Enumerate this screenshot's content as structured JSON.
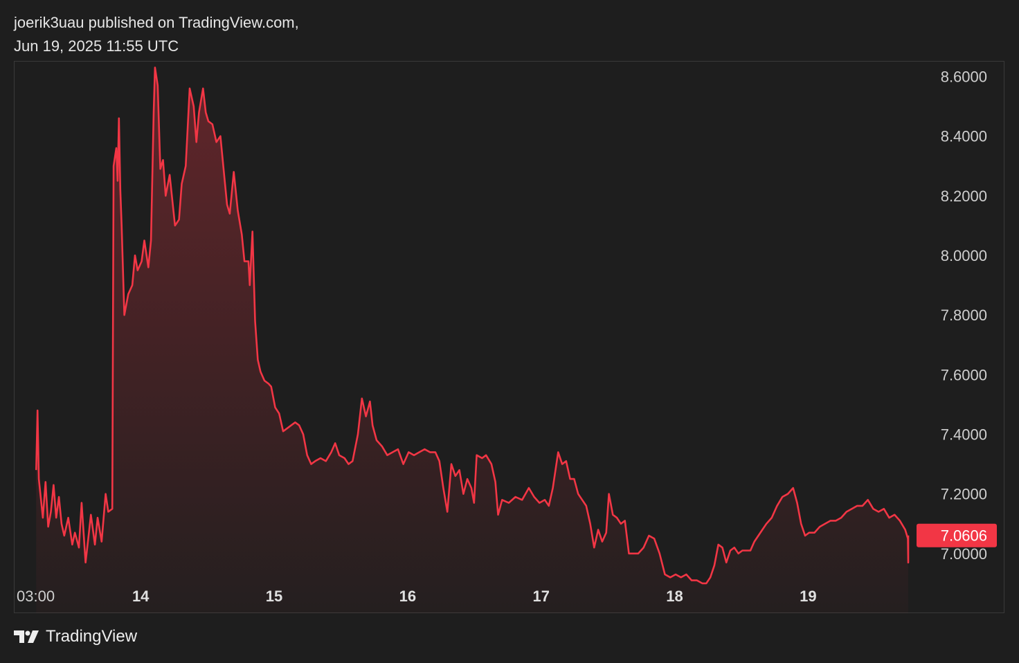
{
  "header": {
    "line1": "joerik3uau published on TradingView.com,",
    "line2": "Jun 19, 2025 11:55 UTC"
  },
  "footer": {
    "brand": "TradingView"
  },
  "colors": {
    "background": "#1e1e1e",
    "line": "#f23645",
    "badge": "#f23645",
    "grid_border": "#3a3a3a"
  },
  "chart_data": {
    "type": "area",
    "title": "",
    "xlabel": "",
    "ylabel": "",
    "ylim": [
      6.8,
      8.65
    ],
    "xlim": [
      13.05,
      19.75
    ],
    "x_ticks": [
      {
        "value": 13.125,
        "label": "03:00"
      },
      {
        "value": 14,
        "label": "14"
      },
      {
        "value": 15,
        "label": "15"
      },
      {
        "value": 16,
        "label": "16"
      },
      {
        "value": 17,
        "label": "17"
      },
      {
        "value": 18,
        "label": "18"
      },
      {
        "value": 19,
        "label": "19"
      }
    ],
    "y_ticks": [
      "8.6000",
      "8.4000",
      "8.2000",
      "8.0000",
      "7.8000",
      "7.6000",
      "7.4000",
      "7.2000",
      "7.0000"
    ],
    "last_price": 7.0606,
    "last_price_label": "7.0606",
    "series": [
      {
        "points": [
          [
            13.01,
            7.28
          ],
          [
            13.02,
            7.48
          ],
          [
            13.03,
            7.25
          ],
          [
            13.06,
            7.12
          ],
          [
            13.08,
            7.24
          ],
          [
            13.1,
            7.09
          ],
          [
            13.12,
            7.14
          ],
          [
            13.14,
            7.23
          ],
          [
            13.16,
            7.12
          ],
          [
            13.18,
            7.19
          ],
          [
            13.2,
            7.1
          ],
          [
            13.22,
            7.06
          ],
          [
            13.25,
            7.12
          ],
          [
            13.28,
            7.03
          ],
          [
            13.3,
            7.07
          ],
          [
            13.33,
            7.02
          ],
          [
            13.35,
            7.17
          ],
          [
            13.38,
            6.97
          ],
          [
            13.4,
            7.05
          ],
          [
            13.42,
            7.13
          ],
          [
            13.45,
            7.03
          ],
          [
            13.47,
            7.12
          ],
          [
            13.5,
            7.04
          ],
          [
            13.53,
            7.2
          ],
          [
            13.55,
            7.14
          ],
          [
            13.58,
            7.15
          ],
          [
            13.59,
            8.3
          ],
          [
            13.61,
            8.36
          ],
          [
            13.62,
            8.25
          ],
          [
            13.63,
            8.46
          ],
          [
            13.64,
            8.22
          ],
          [
            13.65,
            8.1
          ],
          [
            13.67,
            7.8
          ],
          [
            13.7,
            7.87
          ],
          [
            13.73,
            7.9
          ],
          [
            13.75,
            8.0
          ],
          [
            13.77,
            7.95
          ],
          [
            13.8,
            7.98
          ],
          [
            13.82,
            8.05
          ],
          [
            13.85,
            7.96
          ],
          [
            13.87,
            8.05
          ],
          [
            13.89,
            8.48
          ],
          [
            13.9,
            8.63
          ],
          [
            13.92,
            8.57
          ],
          [
            13.94,
            8.29
          ],
          [
            13.96,
            8.32
          ],
          [
            13.98,
            8.2
          ],
          [
            14.01,
            8.27
          ],
          [
            14.05,
            8.1
          ],
          [
            14.08,
            8.12
          ],
          [
            14.1,
            8.24
          ],
          [
            14.13,
            8.3
          ],
          [
            14.16,
            8.56
          ],
          [
            14.19,
            8.5
          ],
          [
            14.21,
            8.38
          ],
          [
            14.23,
            8.48
          ],
          [
            14.26,
            8.56
          ],
          [
            14.28,
            8.48
          ],
          [
            14.3,
            8.45
          ],
          [
            14.33,
            8.44
          ],
          [
            14.36,
            8.38
          ],
          [
            14.39,
            8.4
          ],
          [
            14.42,
            8.26
          ],
          [
            14.44,
            8.17
          ],
          [
            14.46,
            8.14
          ],
          [
            14.49,
            8.28
          ],
          [
            14.52,
            8.15
          ],
          [
            14.55,
            8.07
          ],
          [
            14.57,
            7.98
          ],
          [
            14.6,
            7.98
          ],
          [
            14.61,
            7.9
          ],
          [
            14.63,
            8.08
          ],
          [
            14.65,
            7.78
          ],
          [
            14.67,
            7.65
          ],
          [
            14.69,
            7.61
          ],
          [
            14.72,
            7.58
          ],
          [
            14.75,
            7.57
          ],
          [
            14.77,
            7.56
          ],
          [
            14.8,
            7.49
          ],
          [
            14.83,
            7.47
          ],
          [
            14.86,
            7.41
          ],
          [
            14.89,
            7.42
          ],
          [
            14.92,
            7.43
          ],
          [
            14.95,
            7.44
          ],
          [
            14.98,
            7.43
          ],
          [
            15.01,
            7.4
          ],
          [
            15.04,
            7.33
          ],
          [
            15.07,
            7.3
          ],
          [
            15.1,
            7.31
          ],
          [
            15.14,
            7.32
          ],
          [
            15.18,
            7.31
          ],
          [
            15.22,
            7.34
          ],
          [
            15.25,
            7.37
          ],
          [
            15.28,
            7.33
          ],
          [
            15.32,
            7.32
          ],
          [
            15.35,
            7.3
          ],
          [
            15.38,
            7.31
          ],
          [
            15.42,
            7.4
          ],
          [
            15.45,
            7.52
          ],
          [
            15.48,
            7.46
          ],
          [
            15.51,
            7.51
          ],
          [
            15.53,
            7.43
          ],
          [
            15.56,
            7.38
          ],
          [
            15.6,
            7.36
          ],
          [
            15.64,
            7.33
          ],
          [
            15.68,
            7.34
          ],
          [
            15.72,
            7.35
          ],
          [
            15.76,
            7.3
          ],
          [
            15.8,
            7.34
          ],
          [
            15.84,
            7.33
          ],
          [
            15.88,
            7.34
          ],
          [
            15.92,
            7.35
          ],
          [
            15.96,
            7.34
          ],
          [
            16.0,
            7.34
          ],
          [
            16.03,
            7.31
          ],
          [
            16.06,
            7.22
          ],
          [
            16.09,
            7.14
          ],
          [
            16.12,
            7.3
          ],
          [
            16.15,
            7.26
          ],
          [
            16.18,
            7.28
          ],
          [
            16.21,
            7.2
          ],
          [
            16.24,
            7.25
          ],
          [
            16.27,
            7.22
          ],
          [
            16.29,
            7.17
          ],
          [
            16.31,
            7.33
          ],
          [
            16.35,
            7.32
          ],
          [
            16.38,
            7.33
          ],
          [
            16.42,
            7.3
          ],
          [
            16.45,
            7.24
          ],
          [
            16.47,
            7.13
          ],
          [
            16.5,
            7.18
          ],
          [
            16.55,
            7.17
          ],
          [
            16.6,
            7.19
          ],
          [
            16.65,
            7.18
          ],
          [
            16.7,
            7.22
          ],
          [
            16.74,
            7.19
          ],
          [
            16.78,
            7.17
          ],
          [
            16.82,
            7.18
          ],
          [
            16.85,
            7.16
          ],
          [
            16.88,
            7.22
          ],
          [
            16.92,
            7.34
          ],
          [
            16.95,
            7.3
          ],
          [
            16.98,
            7.31
          ],
          [
            17.01,
            7.25
          ],
          [
            17.04,
            7.25
          ],
          [
            17.07,
            7.2
          ],
          [
            17.1,
            7.18
          ],
          [
            17.13,
            7.16
          ],
          [
            17.16,
            7.1
          ],
          [
            17.19,
            7.02
          ],
          [
            17.22,
            7.08
          ],
          [
            17.25,
            7.04
          ],
          [
            17.28,
            7.07
          ],
          [
            17.3,
            7.2
          ],
          [
            17.33,
            7.13
          ],
          [
            17.36,
            7.12
          ],
          [
            17.39,
            7.1
          ],
          [
            17.42,
            7.11
          ],
          [
            17.45,
            7.0
          ],
          [
            17.48,
            7.0
          ],
          [
            17.52,
            7.0
          ],
          [
            17.56,
            7.02
          ],
          [
            17.6,
            7.06
          ],
          [
            17.64,
            7.05
          ],
          [
            17.68,
            7.0
          ],
          [
            17.72,
            6.93
          ],
          [
            17.76,
            6.92
          ],
          [
            17.8,
            6.93
          ],
          [
            17.84,
            6.92
          ],
          [
            17.88,
            6.93
          ],
          [
            17.92,
            6.91
          ],
          [
            17.96,
            6.91
          ],
          [
            18.0,
            6.9
          ],
          [
            18.03,
            6.9
          ],
          [
            18.06,
            6.92
          ],
          [
            18.09,
            6.96
          ],
          [
            18.12,
            7.03
          ],
          [
            18.15,
            7.02
          ],
          [
            18.18,
            6.97
          ],
          [
            18.21,
            7.01
          ],
          [
            18.24,
            7.02
          ],
          [
            18.27,
            7.0
          ],
          [
            18.3,
            7.01
          ],
          [
            18.33,
            7.01
          ],
          [
            18.36,
            7.01
          ],
          [
            18.39,
            7.04
          ],
          [
            18.42,
            7.06
          ],
          [
            18.45,
            7.08
          ],
          [
            18.48,
            7.1
          ],
          [
            18.52,
            7.12
          ],
          [
            18.56,
            7.16
          ],
          [
            18.6,
            7.19
          ],
          [
            18.64,
            7.2
          ],
          [
            18.68,
            7.22
          ],
          [
            18.71,
            7.17
          ],
          [
            18.74,
            7.1
          ],
          [
            18.77,
            7.06
          ],
          [
            18.8,
            7.07
          ],
          [
            18.84,
            7.07
          ],
          [
            18.88,
            7.09
          ],
          [
            18.92,
            7.1
          ],
          [
            18.96,
            7.11
          ],
          [
            19.0,
            7.11
          ],
          [
            19.04,
            7.12
          ],
          [
            19.08,
            7.14
          ],
          [
            19.12,
            7.15
          ],
          [
            19.16,
            7.16
          ],
          [
            19.2,
            7.16
          ],
          [
            19.24,
            7.18
          ],
          [
            19.28,
            7.15
          ],
          [
            19.32,
            7.14
          ],
          [
            19.36,
            7.15
          ],
          [
            19.4,
            7.12
          ],
          [
            19.44,
            7.13
          ],
          [
            19.48,
            7.11
          ],
          [
            19.52,
            7.08
          ],
          [
            19.54,
            7.05
          ],
          [
            19.55,
            6.97
          ],
          [
            19.57,
            7.03
          ],
          [
            19.58,
            7.0606
          ]
        ]
      }
    ]
  }
}
